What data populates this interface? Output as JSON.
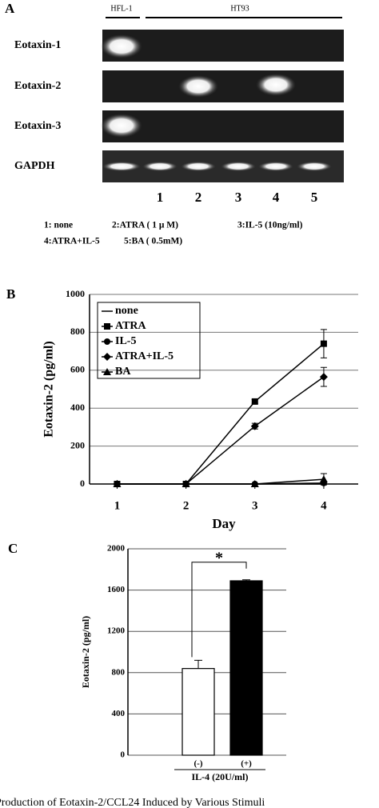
{
  "panel_a": {
    "label": "A",
    "groups": [
      "HFL-1",
      "HT93"
    ],
    "rows": [
      "Eotaxin-1",
      "Eotaxin-2",
      "Eotaxin-3",
      "GAPDH"
    ],
    "lanes": [
      "1",
      "2",
      "3",
      "4",
      "5"
    ],
    "legend": [
      "1: none",
      "2:ATRA ( 1 μ M)",
      "3:IL-5 (10ng/ml)",
      "4:ATRA+IL-5",
      "5:BA ( 0.5mM)"
    ]
  },
  "chart_data": [
    {
      "type": "line",
      "panel": "B",
      "ylabel": "Eotaxin-2 (pg/ml)",
      "xlabel": "Day",
      "x": [
        1,
        2,
        3,
        4
      ],
      "xlim": [
        0.6,
        4.5
      ],
      "xticks": [
        1,
        2,
        3,
        4
      ],
      "ylim": [
        0,
        1000
      ],
      "yticks": [
        0,
        200,
        400,
        600,
        800,
        1000
      ],
      "grid": true,
      "legend": "upper left",
      "series": [
        {
          "name": "none",
          "color": "#000000",
          "marker": "none",
          "values": [
            0,
            0,
            0,
            0
          ],
          "errors": [
            0,
            0,
            0,
            0
          ]
        },
        {
          "name": "ATRA",
          "color": "#000000",
          "marker": "square",
          "values": [
            0,
            0,
            435,
            740
          ],
          "errors": [
            0,
            0,
            10,
            75
          ]
        },
        {
          "name": "IL-5",
          "color": "#000000",
          "marker": "circle",
          "values": [
            0,
            0,
            0,
            5
          ],
          "errors": [
            0,
            0,
            0,
            5
          ]
        },
        {
          "name": "ATRA+IL-5",
          "color": "#000000",
          "marker": "diamond",
          "values": [
            0,
            0,
            305,
            565
          ],
          "errors": [
            0,
            0,
            15,
            50
          ]
        },
        {
          "name": "BA",
          "color": "#000000",
          "marker": "triangle",
          "values": [
            0,
            0,
            0,
            25
          ],
          "errors": [
            0,
            0,
            0,
            30
          ]
        }
      ]
    },
    {
      "type": "bar",
      "panel": "C",
      "ylabel": "Eotaxin-2 (pg/ml)",
      "xlabel": "IL-4 (20U/ml)",
      "categories": [
        "(-)",
        "(+)"
      ],
      "values": [
        840,
        1690
      ],
      "errors": [
        80,
        10
      ],
      "colors": [
        "#ffffff",
        "#000000"
      ],
      "ylim": [
        0,
        2000
      ],
      "yticks": [
        0,
        400,
        800,
        1200,
        1600,
        2000
      ],
      "grid": true,
      "annotation": "*"
    }
  ],
  "caption": "Production of Eotaxin-2/CCL24 Induced by Various Stimuli"
}
